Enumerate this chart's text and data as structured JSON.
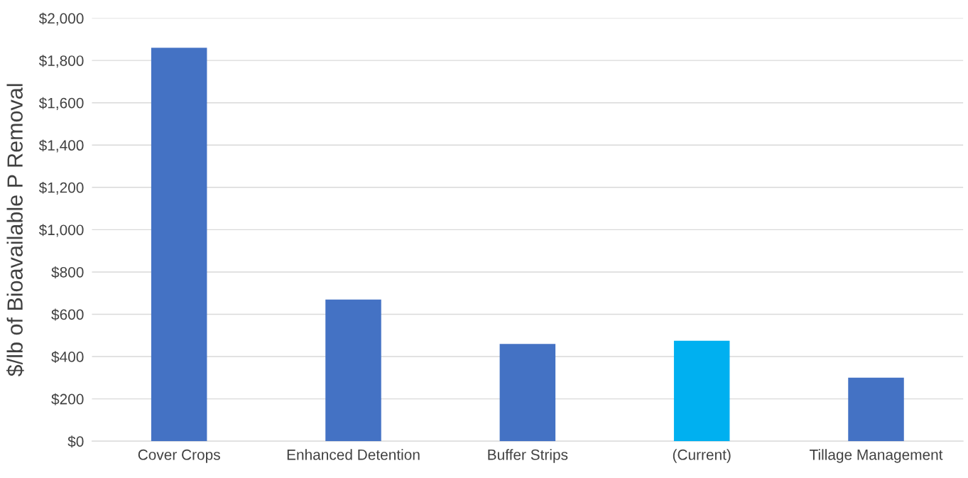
{
  "chart_data": {
    "type": "bar",
    "ylabel": "$/lb of Bioavailable P Removal",
    "categories": [
      "Cover Crops",
      "Enhanced Detention",
      "Buffer Strips",
      "(Current)",
      "Tillage Management"
    ],
    "values": [
      1860,
      670,
      460,
      475,
      300
    ],
    "colors": [
      "#4472c4",
      "#4472c4",
      "#4472c4",
      "#00b0f0",
      "#4472c4"
    ],
    "ylim": [
      0,
      2000
    ],
    "yticks": [
      {
        "value": 0,
        "label": "$0"
      },
      {
        "value": 200,
        "label": "$200"
      },
      {
        "value": 400,
        "label": "$400"
      },
      {
        "value": 600,
        "label": "$600"
      },
      {
        "value": 800,
        "label": "$800"
      },
      {
        "value": 1000,
        "label": "$1,000"
      },
      {
        "value": 1200,
        "label": "$1,200"
      },
      {
        "value": 1400,
        "label": "$1,400"
      },
      {
        "value": 1600,
        "label": "$1,600"
      },
      {
        "value": 1800,
        "label": "$1,800"
      },
      {
        "value": 2000,
        "label": "$2,000"
      }
    ],
    "grid": "y"
  }
}
